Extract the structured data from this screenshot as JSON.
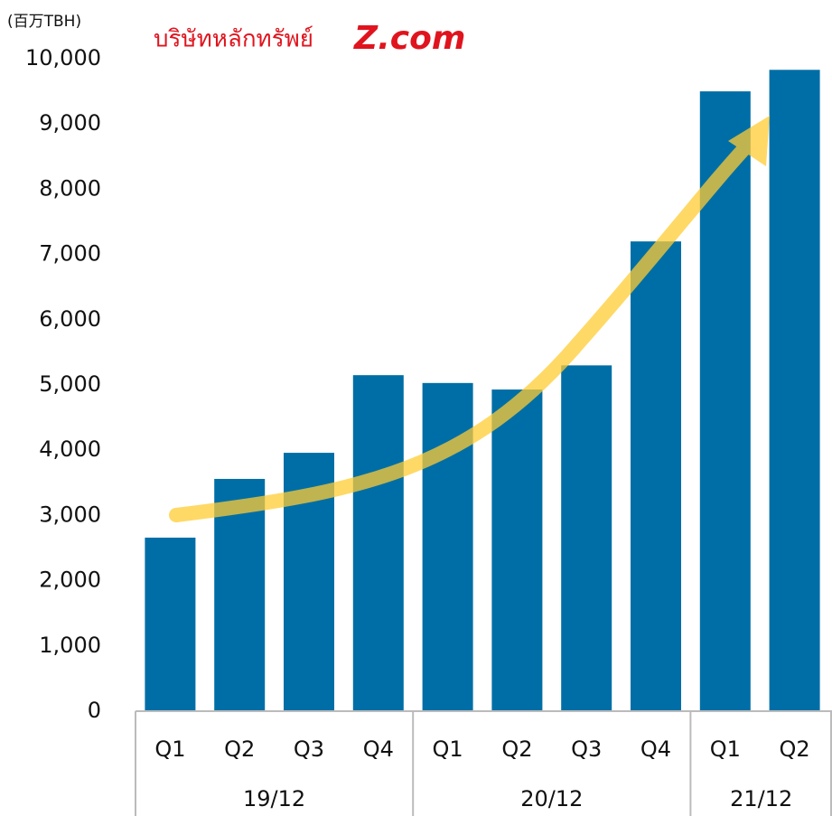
{
  "chart_data": {
    "type": "bar",
    "unit_label": "(百万TBH)",
    "logo": {
      "text": "บริษัทหลักทรัพย์",
      "brand": "Z.com"
    },
    "categories": [
      "Q1",
      "Q2",
      "Q3",
      "Q4",
      "Q1",
      "Q2",
      "Q3",
      "Q4",
      "Q1",
      "Q2"
    ],
    "groups": [
      {
        "label": "19/12",
        "span": 4
      },
      {
        "label": "20/12",
        "span": 4
      },
      {
        "label": "21/12",
        "span": 2
      }
    ],
    "values": [
      2660,
      3560,
      3960,
      5150,
      5030,
      4930,
      5300,
      7200,
      9500,
      9830
    ],
    "color": "#006ea6",
    "ylim": [
      0,
      10000
    ],
    "yticks": [
      0,
      {
        "value": 1000,
        "label": "1,000"
      },
      {
        "value": 2000,
        "label": "2,000"
      },
      {
        "value": 3000,
        "label": "3,000"
      },
      {
        "value": 4000,
        "label": "4,000"
      },
      {
        "value": 5000,
        "label": "5,000"
      },
      {
        "value": 6000,
        "label": "6,000"
      },
      {
        "value": 7000,
        "label": "7,000"
      },
      {
        "value": 8000,
        "label": "8,000"
      },
      {
        "value": 9000,
        "label": "9,000"
      },
      {
        "value": 10000,
        "label": "10,000"
      }
    ],
    "grid": false
  }
}
